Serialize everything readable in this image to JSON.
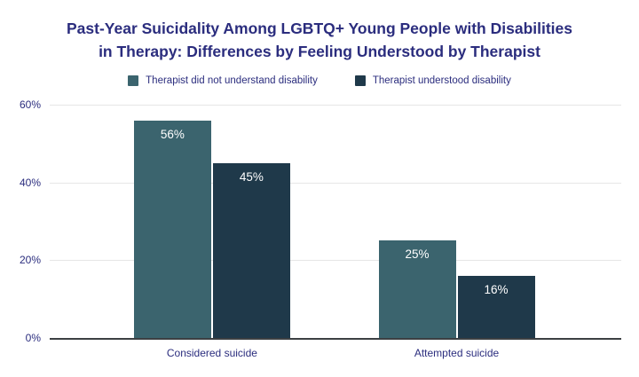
{
  "title": {
    "line1": "Past-Year Suicidality Among LGBTQ+ Young People with Disabilities",
    "line2": "in Therapy: Differences by Feeling Understood by Therapist"
  },
  "colors": {
    "title_text": "#2b2d7e",
    "axis_text": "#2b2d7e",
    "series1": "#3b646e",
    "series2": "#1f394a",
    "gridline": "#e6e6e6",
    "baseline": "#3c4043",
    "bar_label": "#ffffff",
    "background": "#ffffff"
  },
  "chart_data": {
    "type": "bar",
    "title": "Past-Year Suicidality Among LGBTQ+ Young People with Disabilities in Therapy: Differences by Feeling Understood by Therapist",
    "categories": [
      "Considered suicide",
      "Attempted suicide"
    ],
    "series": [
      {
        "name": "Therapist did not understand disability",
        "color_key": "series1",
        "values": [
          56,
          25
        ],
        "labels": [
          "56%",
          "25%"
        ]
      },
      {
        "name": "Therapist understood disability",
        "color_key": "series2",
        "values": [
          45,
          16
        ],
        "labels": [
          "45%",
          "16%"
        ]
      }
    ],
    "y_ticks": [
      {
        "value": 0,
        "label": "0%"
      },
      {
        "value": 20,
        "label": "20%"
      },
      {
        "value": 40,
        "label": "40%"
      },
      {
        "value": 60,
        "label": "60%"
      }
    ],
    "ylim": [
      0,
      60
    ],
    "xlabel": "",
    "ylabel": "",
    "grid": true,
    "legend_position": "top",
    "bar_label_placement": "inside-top"
  }
}
